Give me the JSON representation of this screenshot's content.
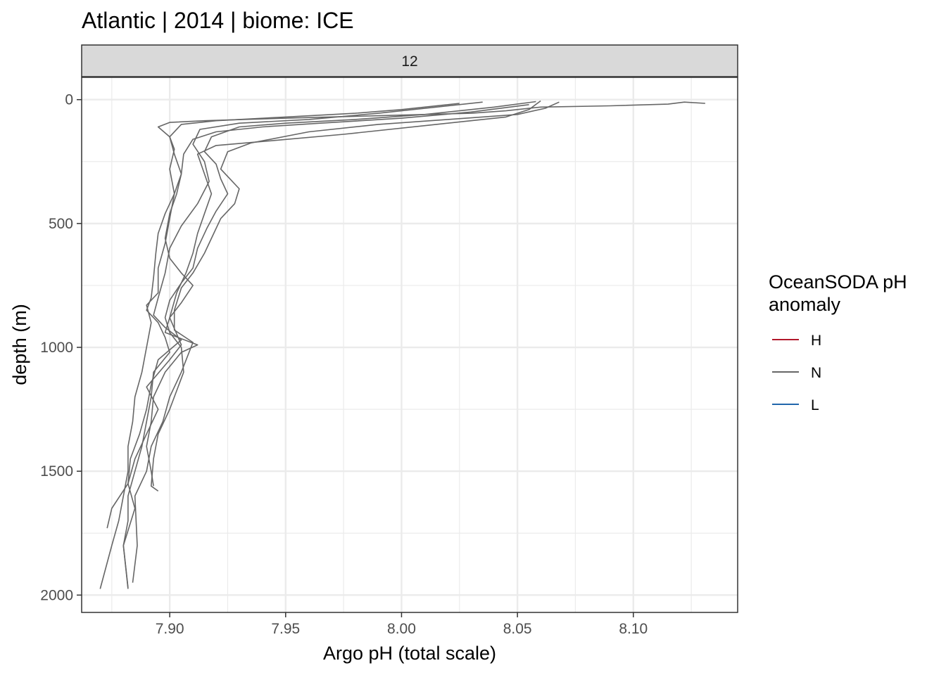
{
  "title": "Atlantic | 2014 | biome: ICE",
  "facet_label": "12",
  "colors": {
    "H": "#b2182b",
    "N": "#666666",
    "L": "#2166ac",
    "grid": "#ebebeb",
    "strip": "#d9d9d9",
    "frame": "#333333"
  },
  "legend": {
    "title_line1": "OceanSODA pH",
    "title_line2": "anomaly",
    "items": [
      {
        "label": "H",
        "color_key": "H"
      },
      {
        "label": "N",
        "color_key": "N"
      },
      {
        "label": "L",
        "color_key": "L"
      }
    ]
  },
  "chart_data": {
    "type": "line",
    "title": "Atlantic | 2014 | biome: ICE",
    "xlabel": "Argo pH (total scale)",
    "ylabel": "depth (m)",
    "xlim": [
      7.862,
      8.145
    ],
    "ylim": [
      2070,
      -90
    ],
    "y_reversed": true,
    "x_ticks": [
      7.9,
      7.95,
      8.0,
      8.05,
      8.1
    ],
    "x_tick_labels": [
      "7.90",
      "7.95",
      "8.00",
      "8.05",
      "8.10"
    ],
    "y_ticks": [
      0,
      500,
      1000,
      1500,
      2000
    ],
    "y_tick_labels": [
      "0",
      "500",
      "1000",
      "1500",
      "2000"
    ],
    "grid": true,
    "legend_position": "right",
    "series": [
      {
        "anomaly": "N",
        "points": [
          [
            8.131,
            15
          ],
          [
            8.122,
            10
          ],
          [
            8.115,
            18
          ],
          [
            8.09,
            25
          ],
          [
            8.06,
            30
          ],
          [
            8.045,
            45
          ],
          [
            8.03,
            55
          ],
          [
            7.99,
            65
          ],
          [
            7.95,
            75
          ],
          [
            7.915,
            85
          ],
          [
            7.9,
            92
          ],
          [
            7.895,
            110
          ],
          [
            7.9,
            150
          ],
          [
            7.902,
            200
          ],
          [
            7.9,
            280
          ],
          [
            7.902,
            380
          ],
          [
            7.9,
            480
          ],
          [
            7.898,
            580
          ],
          [
            7.895,
            680
          ],
          [
            7.895,
            780
          ],
          [
            7.89,
            830
          ],
          [
            7.892,
            900
          ],
          [
            7.89,
            1000
          ],
          [
            7.888,
            1100
          ],
          [
            7.885,
            1200
          ],
          [
            7.884,
            1300
          ],
          [
            7.882,
            1400
          ],
          [
            7.882,
            1500
          ],
          [
            7.878,
            1700
          ],
          [
            7.875,
            1800
          ],
          [
            7.87,
            1975
          ]
        ]
      },
      {
        "anomaly": "N",
        "points": [
          [
            8.068,
            10
          ],
          [
            8.062,
            35
          ],
          [
            8.05,
            60
          ],
          [
            8.02,
            80
          ],
          [
            7.99,
            100
          ],
          [
            7.96,
            130
          ],
          [
            7.935,
            175
          ],
          [
            7.925,
            210
          ],
          [
            7.922,
            280
          ],
          [
            7.93,
            360
          ],
          [
            7.928,
            420
          ],
          [
            7.922,
            480
          ],
          [
            7.918,
            560
          ],
          [
            7.915,
            620
          ],
          [
            7.91,
            700
          ],
          [
            7.905,
            760
          ],
          [
            7.902,
            850
          ],
          [
            7.902,
            930
          ],
          [
            7.91,
            980
          ],
          [
            7.905,
            1100
          ],
          [
            7.9,
            1200
          ],
          [
            7.897,
            1300
          ],
          [
            7.892,
            1400
          ],
          [
            7.89,
            1500
          ],
          [
            7.885,
            1600
          ],
          [
            7.886,
            1800
          ],
          [
            7.884,
            1950
          ]
        ]
      },
      {
        "anomaly": "N",
        "points": [
          [
            8.06,
            5
          ],
          [
            8.055,
            40
          ],
          [
            8.045,
            70
          ],
          [
            8.015,
            100
          ],
          [
            7.975,
            140
          ],
          [
            7.945,
            165
          ],
          [
            7.92,
            185
          ],
          [
            7.912,
            220
          ],
          [
            7.915,
            300
          ],
          [
            7.918,
            380
          ],
          [
            7.915,
            460
          ],
          [
            7.912,
            540
          ],
          [
            7.91,
            620
          ],
          [
            7.907,
            700
          ],
          [
            7.903,
            780
          ],
          [
            7.9,
            880
          ],
          [
            7.905,
            990
          ],
          [
            7.9,
            1050
          ],
          [
            7.89,
            1160
          ],
          [
            7.895,
            1250
          ],
          [
            7.89,
            1350
          ],
          [
            7.885,
            1450
          ],
          [
            7.882,
            1550
          ],
          [
            7.875,
            1650
          ],
          [
            7.873,
            1730
          ]
        ]
      },
      {
        "anomaly": "N",
        "points": [
          [
            8.035,
            10
          ],
          [
            8.015,
            30
          ],
          [
            7.99,
            55
          ],
          [
            7.96,
            80
          ],
          [
            7.93,
            95
          ],
          [
            7.913,
            120
          ],
          [
            7.91,
            180
          ],
          [
            7.915,
            250
          ],
          [
            7.917,
            330
          ],
          [
            7.912,
            420
          ],
          [
            7.905,
            510
          ],
          [
            7.9,
            600
          ],
          [
            7.898,
            700
          ],
          [
            7.895,
            800
          ],
          [
            7.893,
            870
          ],
          [
            7.898,
            920
          ],
          [
            7.905,
            970
          ],
          [
            7.895,
            1050
          ],
          [
            7.892,
            1150
          ],
          [
            7.89,
            1250
          ],
          [
            7.887,
            1350
          ],
          [
            7.883,
            1450
          ],
          [
            7.882,
            1550
          ],
          [
            7.885,
            1650
          ],
          [
            7.88,
            1800
          ],
          [
            7.882,
            1970
          ]
        ]
      },
      {
        "anomaly": "N",
        "points": [
          [
            8.025,
            15
          ],
          [
            8.0,
            40
          ],
          [
            7.98,
            55
          ],
          [
            7.95,
            70
          ],
          [
            7.92,
            85
          ],
          [
            7.905,
            100
          ],
          [
            7.9,
            150
          ],
          [
            7.902,
            220
          ],
          [
            7.905,
            300
          ],
          [
            7.903,
            380
          ],
          [
            7.9,
            460
          ],
          [
            7.898,
            560
          ],
          [
            7.9,
            640
          ],
          [
            7.905,
            700
          ],
          [
            7.91,
            750
          ],
          [
            7.905,
            820
          ],
          [
            7.9,
            880
          ],
          [
            7.898,
            940
          ],
          [
            7.912,
            990
          ],
          [
            7.905,
            1020
          ],
          [
            7.898,
            1100
          ],
          [
            7.893,
            1200
          ],
          [
            7.892,
            1300
          ],
          [
            7.89,
            1400
          ],
          [
            7.892,
            1500
          ],
          [
            7.893,
            1560
          ]
        ]
      },
      {
        "anomaly": "N",
        "points": [
          [
            8.055,
            20
          ],
          [
            8.03,
            50
          ],
          [
            8.0,
            75
          ],
          [
            7.965,
            95
          ],
          [
            7.94,
            110
          ],
          [
            7.92,
            130
          ],
          [
            7.91,
            160
          ],
          [
            7.906,
            220
          ],
          [
            7.905,
            300
          ],
          [
            7.902,
            380
          ],
          [
            7.898,
            460
          ],
          [
            7.895,
            540
          ],
          [
            7.894,
            620
          ],
          [
            7.893,
            720
          ],
          [
            7.892,
            800
          ],
          [
            7.89,
            850
          ],
          [
            7.895,
            900
          ],
          [
            7.898,
            960
          ],
          [
            7.9,
            1020
          ],
          [
            7.893,
            1100
          ],
          [
            7.892,
            1200
          ],
          [
            7.89,
            1300
          ],
          [
            7.888,
            1400
          ],
          [
            7.885,
            1500
          ],
          [
            7.882,
            1600
          ],
          [
            7.882,
            1700
          ],
          [
            7.88,
            1800
          ],
          [
            7.882,
            1975
          ]
        ]
      },
      {
        "anomaly": "N",
        "points": [
          [
            8.058,
            8
          ],
          [
            8.04,
            30
          ],
          [
            8.01,
            60
          ],
          [
            7.98,
            80
          ],
          [
            7.95,
            95
          ],
          [
            7.93,
            110
          ],
          [
            7.918,
            150
          ],
          [
            7.915,
            210
          ],
          [
            7.92,
            260
          ],
          [
            7.922,
            320
          ],
          [
            7.925,
            380
          ],
          [
            7.92,
            450
          ],
          [
            7.916,
            520
          ],
          [
            7.912,
            600
          ],
          [
            7.91,
            680
          ],
          [
            7.905,
            740
          ],
          [
            7.9,
            810
          ],
          [
            7.898,
            880
          ],
          [
            7.9,
            940
          ],
          [
            7.905,
            1000
          ],
          [
            7.906,
            1100
          ],
          [
            7.902,
            1200
          ],
          [
            7.9,
            1250
          ],
          [
            7.895,
            1350
          ],
          [
            7.893,
            1450
          ],
          [
            7.892,
            1560
          ],
          [
            7.895,
            1580
          ]
        ]
      }
    ]
  }
}
